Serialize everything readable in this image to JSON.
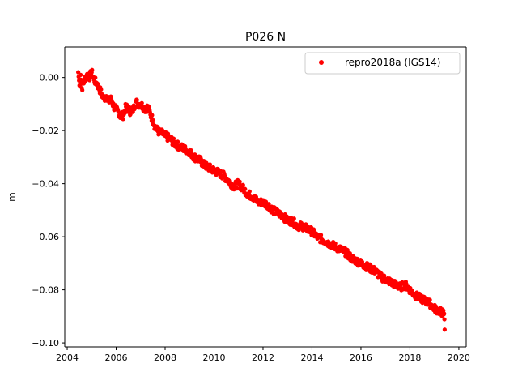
{
  "chart_data": {
    "type": "scatter",
    "title": "P026 N",
    "xlabel": "",
    "ylabel": "m",
    "xlim": [
      2003.9,
      2020.3
    ],
    "ylim": [
      -0.1015,
      0.0115
    ],
    "xticks": [
      2004,
      2006,
      2008,
      2010,
      2012,
      2014,
      2016,
      2018,
      2020
    ],
    "xtick_labels": [
      "2004",
      "2006",
      "2008",
      "2010",
      "2012",
      "2014",
      "2016",
      "2018",
      "2020"
    ],
    "yticks": [
      0.0,
      -0.02,
      -0.04,
      -0.06,
      -0.08,
      -0.1
    ],
    "ytick_labels": [
      "0.00",
      "−0.02",
      "−0.04",
      "−0.06",
      "−0.08",
      "−0.10"
    ],
    "grid": false,
    "legend_position": "top-right",
    "series": [
      {
        "name": "repro2018a (IGS14)",
        "color": "#ff0000",
        "marker": "circle",
        "x": [
          2004.45,
          2004.5,
          2004.55,
          2004.6,
          2004.7,
          2004.8,
          2004.9,
          2005.0,
          2005.1,
          2005.2,
          2005.3,
          2005.4,
          2005.5,
          2005.6,
          2005.7,
          2005.8,
          2005.9,
          2006.0,
          2006.1,
          2006.2,
          2006.3,
          2006.4,
          2006.5,
          2006.6,
          2006.7,
          2006.8,
          2006.9,
          2007.0,
          2007.1,
          2007.2,
          2007.3,
          2007.4,
          2007.5,
          2007.6,
          2007.7,
          2007.8,
          2007.9,
          2008.0,
          2008.2,
          2008.4,
          2008.6,
          2008.8,
          2009.0,
          2009.2,
          2009.4,
          2009.6,
          2009.8,
          2010.0,
          2010.2,
          2010.4,
          2010.6,
          2010.8,
          2011.0,
          2011.2,
          2011.4,
          2011.6,
          2011.8,
          2012.0,
          2012.2,
          2012.4,
          2012.6,
          2012.8,
          2013.0,
          2013.2,
          2013.4,
          2013.6,
          2013.8,
          2014.0,
          2014.2,
          2014.4,
          2014.6,
          2014.8,
          2015.0,
          2015.2,
          2015.4,
          2015.6,
          2015.8,
          2016.0,
          2016.2,
          2016.4,
          2016.6,
          2016.8,
          2017.0,
          2017.2,
          2017.4,
          2017.6,
          2017.8,
          2018.0,
          2018.2,
          2018.4,
          2018.6,
          2018.8,
          2019.0,
          2019.2,
          2019.4,
          2019.42
        ],
        "y": [
          0.002,
          -0.003,
          0.001,
          -0.004,
          -0.001,
          0.001,
          0.0,
          0.002,
          -0.001,
          -0.002,
          -0.004,
          -0.006,
          -0.008,
          -0.007,
          -0.009,
          -0.008,
          -0.011,
          -0.012,
          -0.013,
          -0.015,
          -0.014,
          -0.011,
          -0.012,
          -0.013,
          -0.012,
          -0.009,
          -0.01,
          -0.01,
          -0.011,
          -0.012,
          -0.011,
          -0.014,
          -0.016,
          -0.019,
          -0.02,
          -0.021,
          -0.021,
          -0.022,
          -0.023,
          -0.025,
          -0.026,
          -0.027,
          -0.028,
          -0.03,
          -0.031,
          -0.033,
          -0.034,
          -0.035,
          -0.036,
          -0.037,
          -0.039,
          -0.041,
          -0.04,
          -0.042,
          -0.044,
          -0.045,
          -0.047,
          -0.047,
          -0.048,
          -0.05,
          -0.051,
          -0.052,
          -0.054,
          -0.054,
          -0.056,
          -0.056,
          -0.057,
          -0.058,
          -0.06,
          -0.061,
          -0.062,
          -0.063,
          -0.064,
          -0.065,
          -0.066,
          -0.068,
          -0.069,
          -0.07,
          -0.071,
          -0.072,
          -0.073,
          -0.075,
          -0.076,
          -0.077,
          -0.078,
          -0.079,
          -0.078,
          -0.08,
          -0.082,
          -0.083,
          -0.084,
          -0.085,
          -0.087,
          -0.088,
          -0.089,
          -0.095
        ]
      }
    ]
  }
}
